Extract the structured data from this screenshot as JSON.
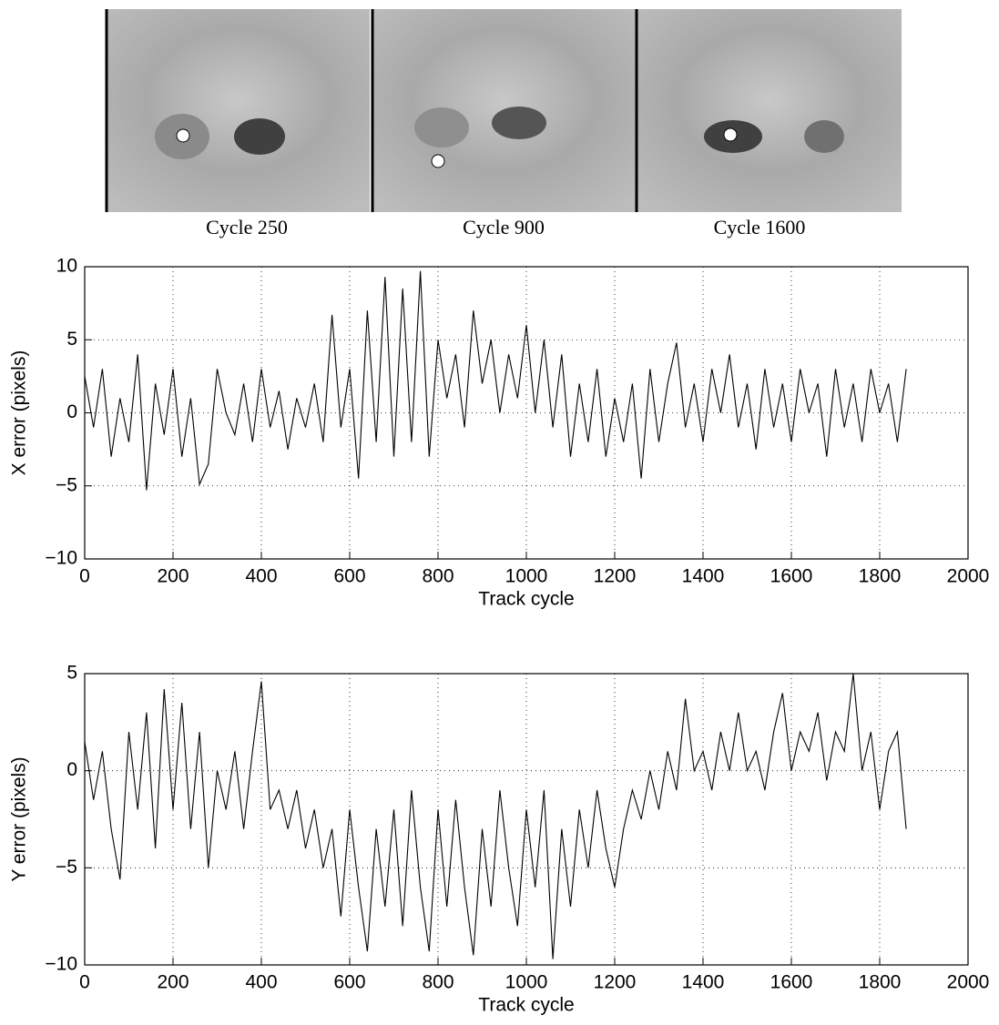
{
  "images": [
    {
      "caption": "Cycle 250"
    },
    {
      "caption": "Cycle 900"
    },
    {
      "caption": "Cycle 1600"
    }
  ],
  "chart_data": [
    {
      "type": "line",
      "xlabel": "Track cycle",
      "ylabel": "X error (pixels)",
      "xlim": [
        0,
        2000
      ],
      "ylim": [
        -10,
        10
      ],
      "xticks": [
        0,
        200,
        400,
        600,
        800,
        1000,
        1200,
        1400,
        1600,
        1800,
        2000
      ],
      "yticks": [
        {
          "value": -10,
          "label": "−10"
        },
        {
          "value": -5,
          "label": "−5"
        },
        0,
        5,
        10
      ],
      "grid": true,
      "x": [
        0,
        20,
        40,
        60,
        80,
        100,
        120,
        140,
        160,
        180,
        200,
        220,
        240,
        260,
        280,
        300,
        320,
        340,
        360,
        380,
        400,
        420,
        440,
        460,
        480,
        500,
        520,
        540,
        560,
        580,
        600,
        620,
        640,
        660,
        680,
        700,
        720,
        740,
        760,
        780,
        800,
        820,
        840,
        860,
        880,
        900,
        920,
        940,
        960,
        980,
        1000,
        1020,
        1040,
        1060,
        1080,
        1100,
        1120,
        1140,
        1160,
        1180,
        1200,
        1220,
        1240,
        1260,
        1280,
        1300,
        1320,
        1340,
        1360,
        1380,
        1400,
        1420,
        1440,
        1460,
        1480,
        1500,
        1520,
        1540,
        1560,
        1580,
        1600,
        1620,
        1640,
        1660,
        1680,
        1700,
        1720,
        1740,
        1760,
        1780,
        1800,
        1820,
        1840,
        1860
      ],
      "series": [
        {
          "color": "#000000",
          "values": [
            2.5,
            -1,
            3,
            -3,
            1,
            -2,
            4,
            -5.3,
            2,
            -1.5,
            3,
            -3,
            1,
            -4.9,
            -3.5,
            3,
            0,
            -1.5,
            2,
            -2,
            3,
            -1,
            1.5,
            -2.5,
            1,
            -1,
            2,
            -2,
            6.7,
            -1,
            3,
            -4.5,
            7,
            -2,
            9.3,
            -3,
            8.5,
            -2,
            9.7,
            -3,
            5,
            1,
            4,
            -1,
            7,
            2,
            5,
            0,
            4,
            1,
            6,
            0,
            5,
            -1,
            4,
            -3,
            2,
            -2,
            3,
            -3,
            1,
            -2,
            2,
            -4.5,
            3,
            -2,
            2,
            4.8,
            -1,
            2,
            -2,
            3,
            0,
            4,
            -1,
            2,
            -2.5,
            3,
            -1,
            2,
            -2,
            3,
            0,
            2,
            -3,
            3,
            -1,
            2,
            -2,
            3,
            0,
            2,
            -2,
            3
          ]
        }
      ]
    },
    {
      "type": "line",
      "xlabel": "Track cycle",
      "ylabel": "Y error (pixels)",
      "xlim": [
        0,
        2000
      ],
      "ylim": [
        -10,
        5
      ],
      "xticks": [
        0,
        200,
        400,
        600,
        800,
        1000,
        1200,
        1400,
        1600,
        1800,
        2000
      ],
      "yticks": [
        {
          "value": -10,
          "label": "−10"
        },
        {
          "value": -5,
          "label": "−5"
        },
        0,
        5
      ],
      "grid": true,
      "x": [
        0,
        20,
        40,
        60,
        80,
        100,
        120,
        140,
        160,
        180,
        200,
        220,
        240,
        260,
        280,
        300,
        320,
        340,
        360,
        380,
        400,
        420,
        440,
        460,
        480,
        500,
        520,
        540,
        560,
        580,
        600,
        620,
        640,
        660,
        680,
        700,
        720,
        740,
        760,
        780,
        800,
        820,
        840,
        860,
        880,
        900,
        920,
        940,
        960,
        980,
        1000,
        1020,
        1040,
        1060,
        1080,
        1100,
        1120,
        1140,
        1160,
        1180,
        1200,
        1220,
        1240,
        1260,
        1280,
        1300,
        1320,
        1340,
        1360,
        1380,
        1400,
        1420,
        1440,
        1460,
        1480,
        1500,
        1520,
        1540,
        1560,
        1580,
        1600,
        1620,
        1640,
        1660,
        1680,
        1700,
        1720,
        1740,
        1760,
        1780,
        1800,
        1820,
        1840,
        1860
      ],
      "series": [
        {
          "color": "#000000",
          "values": [
            1.5,
            -1.5,
            1,
            -3,
            -5.6,
            2,
            -2,
            3,
            -4,
            4.2,
            -2,
            3.5,
            -3,
            2,
            -5,
            0,
            -2,
            1,
            -3,
            1,
            4.6,
            -2,
            -1,
            -3,
            -1,
            -4,
            -2,
            -5,
            -3,
            -7.5,
            -2,
            -6,
            -9.3,
            -3,
            -7,
            -2,
            -8,
            -1,
            -6,
            -9.3,
            -2,
            -7,
            -1.5,
            -6,
            -9.5,
            -3,
            -7,
            -1,
            -5,
            -8,
            -2,
            -6,
            -1,
            -9.7,
            -3,
            -7,
            -2,
            -5,
            -1,
            -4,
            -6,
            -3,
            -1,
            -2.5,
            0,
            -2,
            1,
            -1,
            3.7,
            0,
            1,
            -1,
            2,
            0,
            3,
            0,
            1,
            -1,
            2,
            4,
            0,
            2,
            1,
            3,
            -0.5,
            2,
            1,
            5,
            0,
            2,
            -2,
            1,
            2,
            -3
          ]
        }
      ]
    }
  ]
}
